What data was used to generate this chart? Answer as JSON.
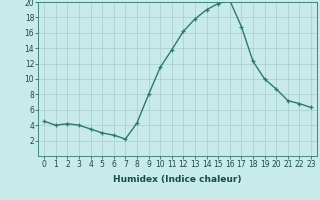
{
  "xlabel": "Humidex (Indice chaleur)",
  "x": [
    0,
    1,
    2,
    3,
    4,
    5,
    6,
    7,
    8,
    9,
    10,
    11,
    12,
    13,
    14,
    15,
    16,
    17,
    18,
    19,
    20,
    21,
    22,
    23
  ],
  "y": [
    4.5,
    4.0,
    4.2,
    4.0,
    3.5,
    3.0,
    2.7,
    2.2,
    4.3,
    8.0,
    11.5,
    13.8,
    16.2,
    17.8,
    19.0,
    19.8,
    20.2,
    16.8,
    12.3,
    10.0,
    8.7,
    7.2,
    6.8,
    6.3
  ],
  "ylim": [
    0,
    20
  ],
  "xlim_min": -0.5,
  "xlim_max": 23.5,
  "yticks": [
    2,
    4,
    6,
    8,
    10,
    12,
    14,
    16,
    18,
    20
  ],
  "xticks": [
    0,
    1,
    2,
    3,
    4,
    5,
    6,
    7,
    8,
    9,
    10,
    11,
    12,
    13,
    14,
    15,
    16,
    17,
    18,
    19,
    20,
    21,
    22,
    23
  ],
  "line_color": "#2d7a6a",
  "marker": "+",
  "bg_color": "#c8eaea",
  "grid_color": "#a8cccc",
  "tick_fontsize": 5.5,
  "linewidth": 1.0,
  "xlabel_fontsize": 6.5,
  "marker_size": 3.5
}
